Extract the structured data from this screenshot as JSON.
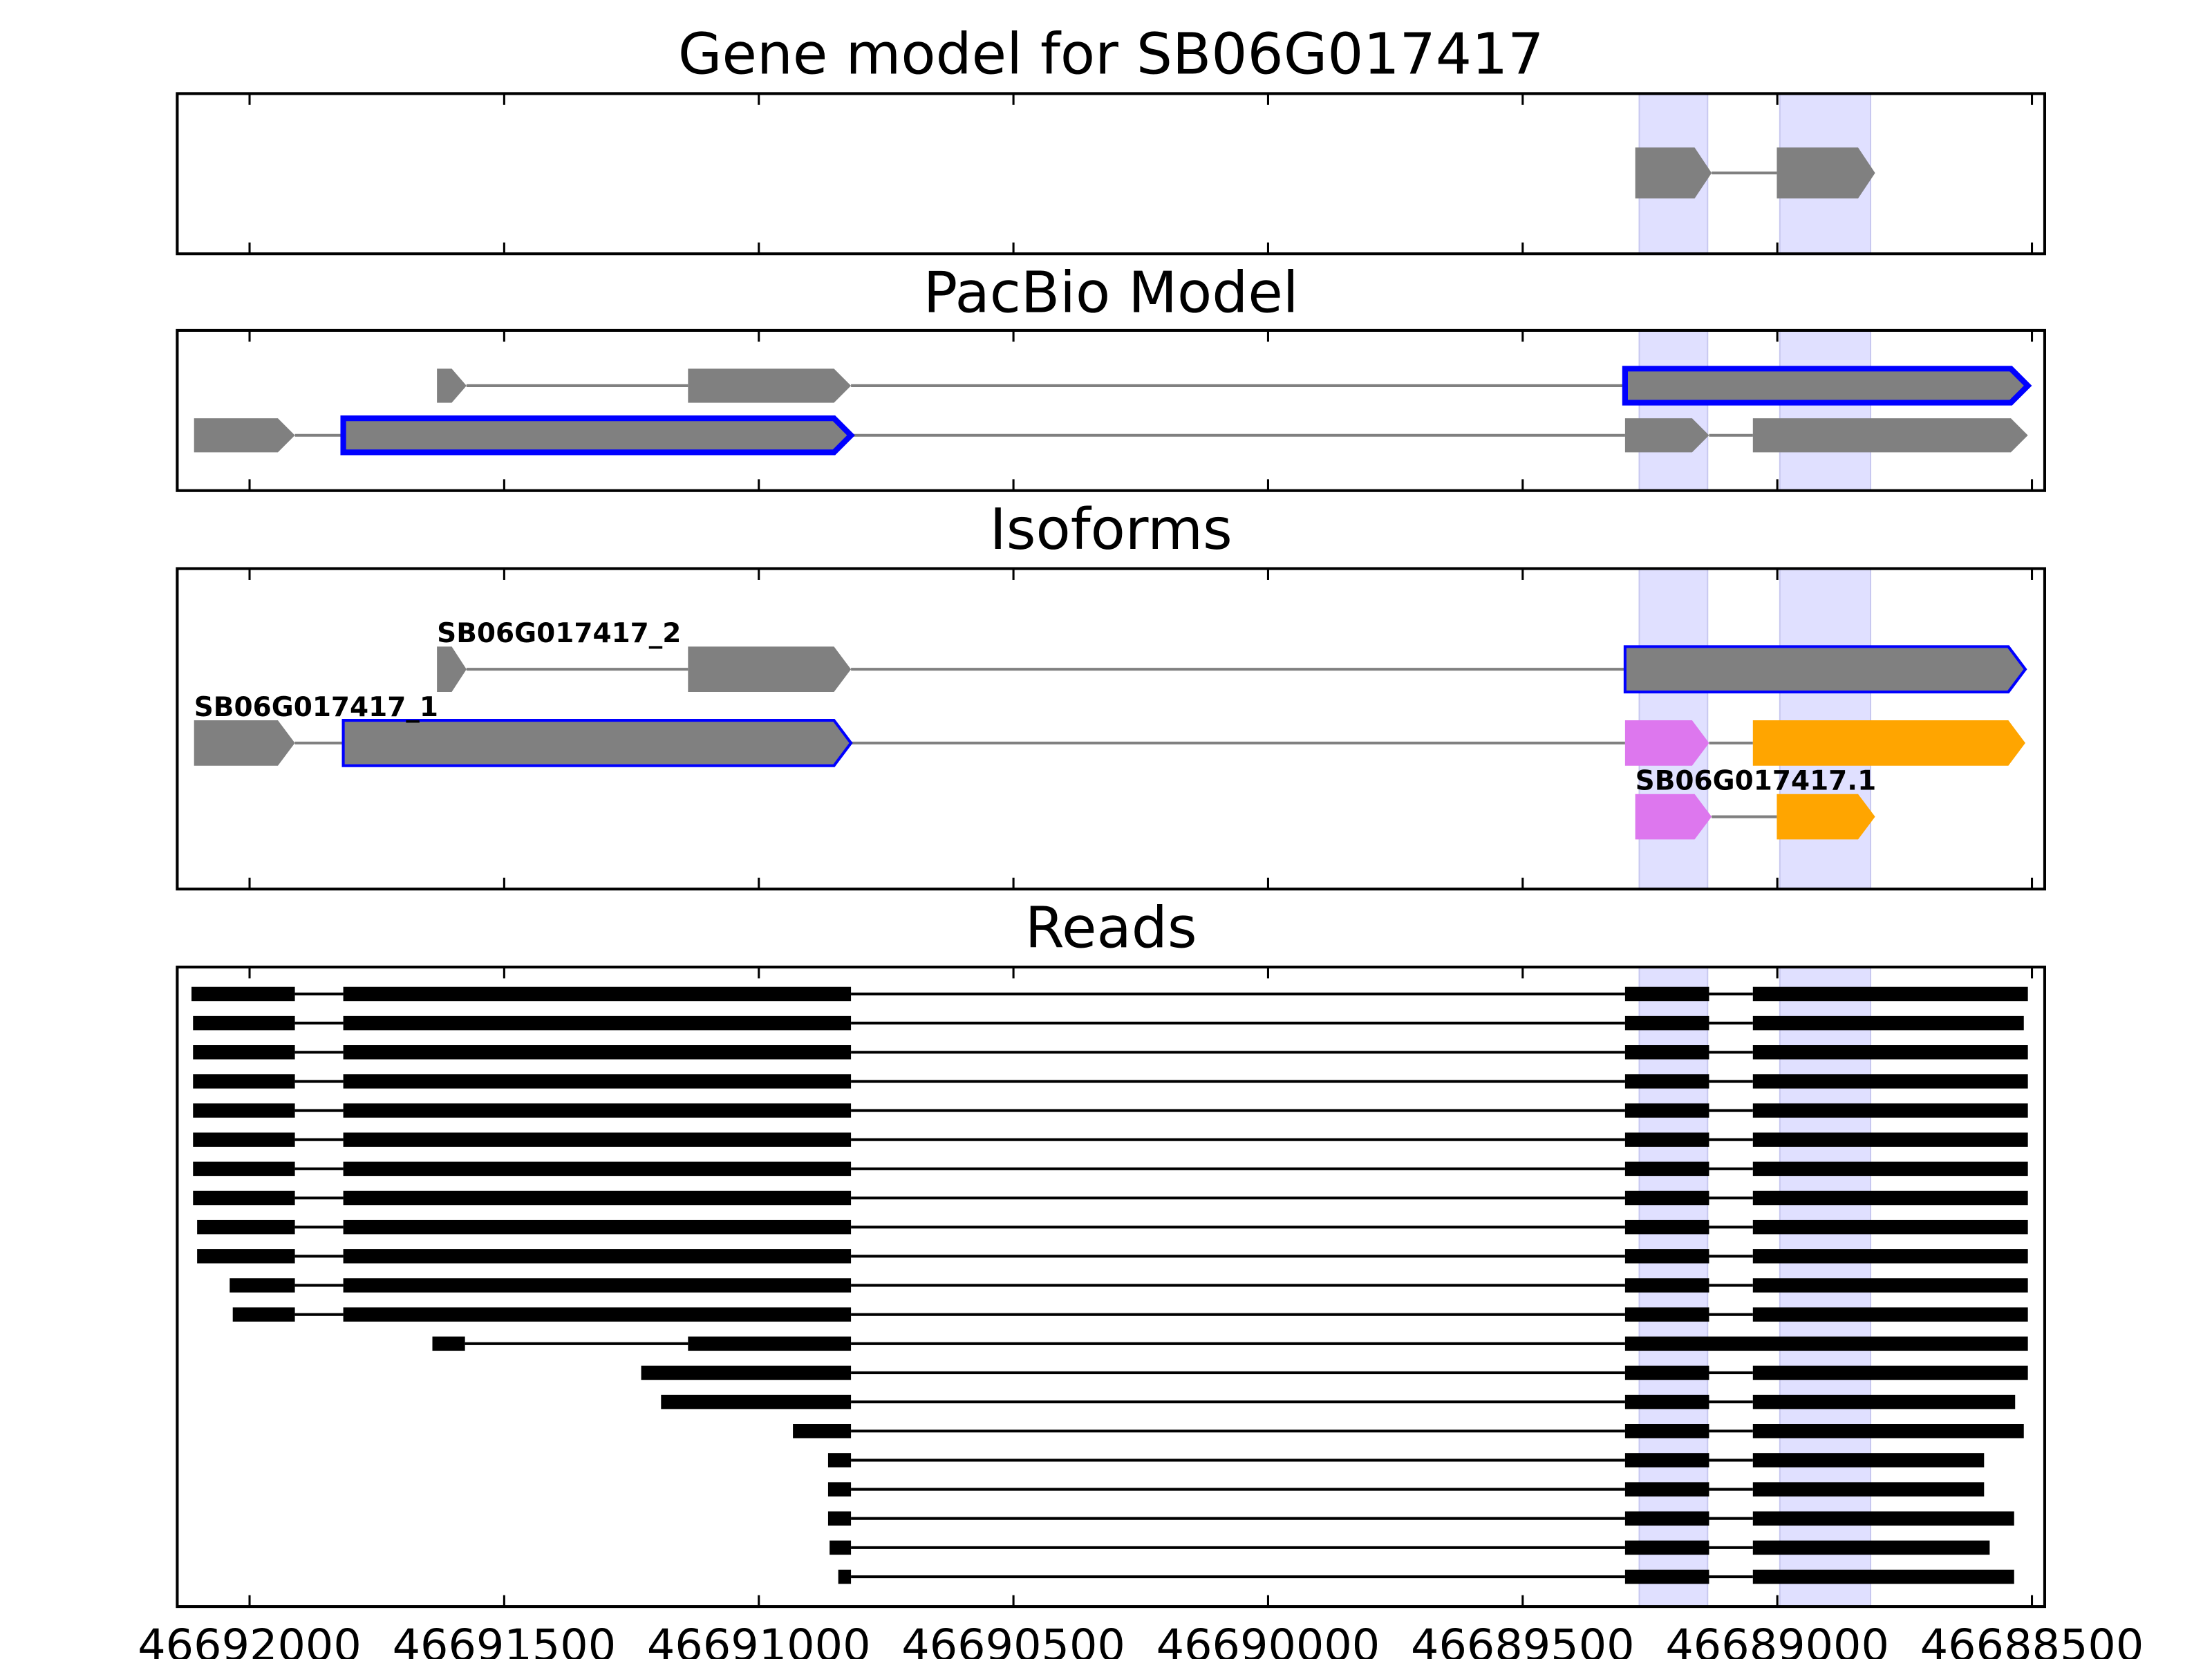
{
  "chart_data": [
    {
      "type": "gene-track",
      "title": "Gene model for SB06G017417",
      "xlim": [
        46692142,
        46688475
      ],
      "xticks": [
        46692000,
        46691500,
        46691000,
        46690500,
        46690000,
        46689500,
        46689000,
        46688500
      ],
      "show_tick_labels": false,
      "highlights": [
        [
          46689271,
          46689137
        ],
        [
          46688995,
          46688817
        ]
      ],
      "highlight_color": "#e0e0ff",
      "transcripts": [
        {
          "exons": [
            {
              "start": 46689279,
              "end": 46689129,
              "color": "#808080"
            },
            {
              "start": 46689001,
              "end": 46688808,
              "color": "#808080"
            }
          ]
        }
      ]
    },
    {
      "type": "gene-track",
      "title": "PacBio Model",
      "xlim": [
        46692142,
        46688475
      ],
      "xticks": [
        46692000,
        46691500,
        46691000,
        46690500,
        46690000,
        46689500,
        46689000,
        46688500
      ],
      "show_tick_labels": false,
      "highlights": [
        [
          46689271,
          46689137
        ],
        [
          46688995,
          46688817
        ]
      ],
      "highlight_color": "#e0e0ff",
      "transcripts": [
        {
          "exons": [
            {
              "start": 46691632,
              "end": 46691574,
              "color": "#808080"
            },
            {
              "start": 46691139,
              "end": 46690819,
              "color": "#808080"
            },
            {
              "start": 46689299,
              "end": 46688508,
              "color": "#808080",
              "edge": "#0000ff"
            }
          ]
        },
        {
          "exons": [
            {
              "start": 46692109,
              "end": 46691911,
              "color": "#808080"
            },
            {
              "start": 46691816,
              "end": 46690819,
              "color": "#808080",
              "edge": "#0000ff"
            },
            {
              "start": 46689299,
              "end": 46689134,
              "color": "#808080"
            },
            {
              "start": 46689048,
              "end": 46688508,
              "color": "#808080"
            }
          ]
        }
      ]
    },
    {
      "type": "gene-track",
      "title": "Isoforms",
      "xlim": [
        46692142,
        46688475
      ],
      "xticks": [
        46692000,
        46691500,
        46691000,
        46690500,
        46690000,
        46689500,
        46689000,
        46688500
      ],
      "show_tick_labels": false,
      "highlights": [
        [
          46689271,
          46689137
        ],
        [
          46688995,
          46688817
        ]
      ],
      "highlight_color": "#e0e0ff",
      "transcripts": [
        {
          "label": "SB06G017417_2",
          "exons": [
            {
              "start": 46691632,
              "end": 46691574,
              "color": "#808080"
            },
            {
              "start": 46691139,
              "end": 46690819,
              "color": "#808080"
            },
            {
              "start": 46689299,
              "end": 46688513,
              "color": "#808080",
              "edge": "#0000ff"
            }
          ]
        },
        {
          "label": "SB06G017417_1",
          "exons": [
            {
              "start": 46692109,
              "end": 46691911,
              "color": "#808080"
            },
            {
              "start": 46691816,
              "end": 46690819,
              "color": "#808080",
              "edge": "#0000ff"
            },
            {
              "start": 46689299,
              "end": 46689134,
              "color": "#dd77ee"
            },
            {
              "start": 46689048,
              "end": 46688513,
              "color": "#ffa500"
            }
          ]
        },
        {
          "label": "SB06G017417.1",
          "exons": [
            {
              "start": 46689279,
              "end": 46689129,
              "color": "#dd77ee"
            },
            {
              "start": 46689001,
              "end": 46688808,
              "color": "#ffa500"
            }
          ]
        }
      ]
    },
    {
      "type": "reads",
      "title": "Reads",
      "xlim": [
        46692142,
        46688475
      ],
      "xticks": [
        46692000,
        46691500,
        46691000,
        46690500,
        46690000,
        46689500,
        46689000,
        46688500
      ],
      "show_tick_labels": true,
      "highlights": [
        [
          46689271,
          46689137
        ],
        [
          46688995,
          46688817
        ]
      ],
      "highlight_color": "#e0e0ff",
      "color": "#000000",
      "reads": [
        [
          [
            46692114,
            46691911
          ],
          [
            46691816,
            46690819
          ],
          [
            46689299,
            46689134
          ],
          [
            46689048,
            46688508
          ]
        ],
        [
          [
            46692111,
            46691911
          ],
          [
            46691816,
            46690819
          ],
          [
            46689299,
            46689134
          ],
          [
            46689048,
            46688516
          ]
        ],
        [
          [
            46692111,
            46691911
          ],
          [
            46691816,
            46690819
          ],
          [
            46689299,
            46689134
          ],
          [
            46689048,
            46688508
          ]
        ],
        [
          [
            46692111,
            46691911
          ],
          [
            46691816,
            46690819
          ],
          [
            46689299,
            46689134
          ],
          [
            46689048,
            46688508
          ]
        ],
        [
          [
            46692111,
            46691911
          ],
          [
            46691816,
            46690819
          ],
          [
            46689299,
            46689134
          ],
          [
            46689048,
            46688508
          ]
        ],
        [
          [
            46692111,
            46691911
          ],
          [
            46691816,
            46690819
          ],
          [
            46689299,
            46689134
          ],
          [
            46689048,
            46688508
          ]
        ],
        [
          [
            46692111,
            46691911
          ],
          [
            46691816,
            46690819
          ],
          [
            46689299,
            46689134
          ],
          [
            46689048,
            46688508
          ]
        ],
        [
          [
            46692111,
            46691911
          ],
          [
            46691816,
            46690819
          ],
          [
            46689299,
            46689134
          ],
          [
            46689048,
            46688508
          ]
        ],
        [
          [
            46692103,
            46691911
          ],
          [
            46691816,
            46690819
          ],
          [
            46689299,
            46689134
          ],
          [
            46689048,
            46688508
          ]
        ],
        [
          [
            46692103,
            46691911
          ],
          [
            46691816,
            46690819
          ],
          [
            46689299,
            46689134
          ],
          [
            46689048,
            46688508
          ]
        ],
        [
          [
            46692039,
            46691911
          ],
          [
            46691816,
            46690819
          ],
          [
            46689299,
            46689134
          ],
          [
            46689048,
            46688508
          ]
        ],
        [
          [
            46692033,
            46691911
          ],
          [
            46691816,
            46690819
          ],
          [
            46689299,
            46689134
          ],
          [
            46689048,
            46688508
          ]
        ],
        [
          [
            46691641,
            46691577
          ],
          [
            46691139,
            46690819
          ],
          [
            46689299,
            46688508
          ]
        ],
        [
          [
            46691231,
            46690819
          ],
          [
            46689299,
            46689134
          ],
          [
            46689048,
            46688508
          ]
        ],
        [
          [
            46691192,
            46690819
          ],
          [
            46689299,
            46689134
          ],
          [
            46689048,
            46688533
          ]
        ],
        [
          [
            46690933,
            46690819
          ],
          [
            46689299,
            46689134
          ],
          [
            46689048,
            46688516
          ]
        ],
        [
          [
            46690864,
            46690819
          ],
          [
            46689299,
            46689134
          ],
          [
            46689048,
            46688594
          ]
        ],
        [
          [
            46690864,
            46690819
          ],
          [
            46689299,
            46689134
          ],
          [
            46689048,
            46688594
          ]
        ],
        [
          [
            46690864,
            46690819
          ],
          [
            46689299,
            46689134
          ],
          [
            46689048,
            46688535
          ]
        ],
        [
          [
            46690861,
            46690819
          ],
          [
            46689299,
            46689134
          ],
          [
            46689048,
            46688583
          ]
        ],
        [
          [
            46690844,
            46690819
          ],
          [
            46689299,
            46689134
          ],
          [
            46689048,
            46688535
          ]
        ]
      ]
    }
  ]
}
